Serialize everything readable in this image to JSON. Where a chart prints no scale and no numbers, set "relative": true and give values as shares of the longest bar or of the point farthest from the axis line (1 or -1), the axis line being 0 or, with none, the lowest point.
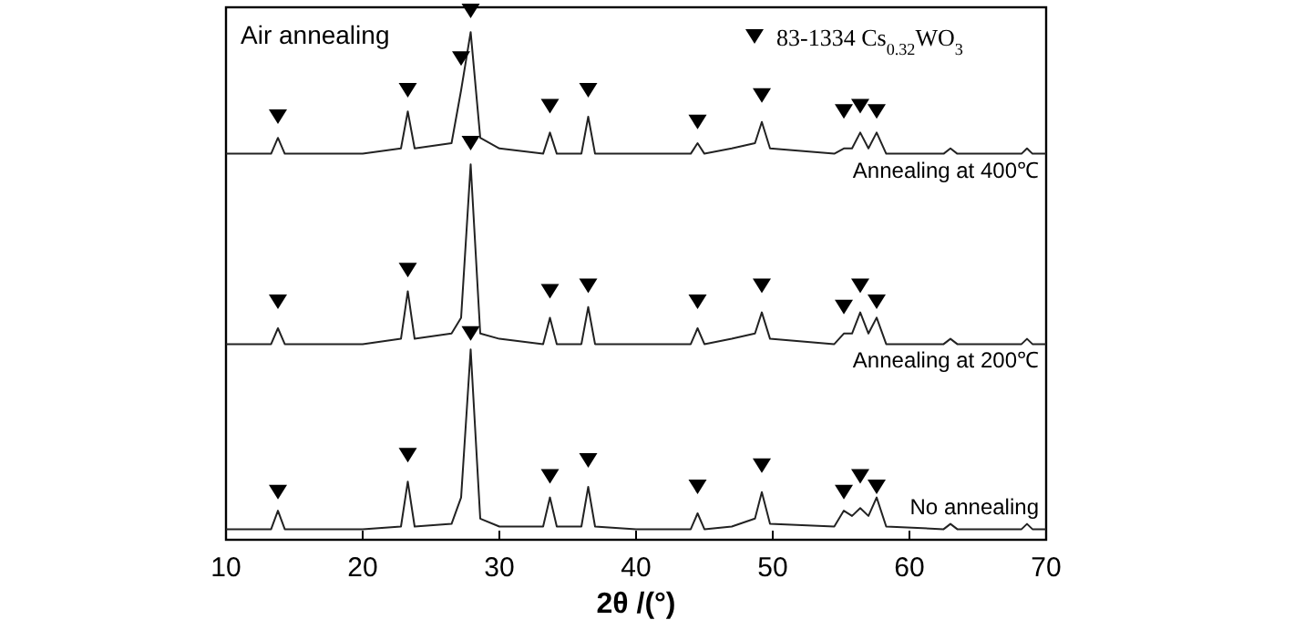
{
  "chart_data": {
    "type": "line",
    "relative": true,
    "xlabel": "2θ /(°)",
    "annotations": [
      "Air annealing"
    ],
    "xlim": [
      10,
      70
    ],
    "xticks": [
      10,
      20,
      30,
      40,
      50,
      60,
      70
    ],
    "grid": false,
    "legend": "top right",
    "marker": "none",
    "line_style": "solid",
    "x": [
      10,
      13.3,
      13.8,
      14.3,
      20,
      22.8,
      23.3,
      23.8,
      26.5,
      27.2,
      27.9,
      28.6,
      30,
      33.2,
      33.7,
      34.2,
      36,
      36.5,
      37,
      40,
      44,
      44.5,
      45,
      47,
      48.7,
      49.2,
      49.8,
      54.5,
      55.2,
      55.8,
      56.4,
      57,
      57.6,
      58.3,
      62.5,
      63,
      63.5,
      68.2,
      68.6,
      69,
      70
    ],
    "series": [
      {
        "name": "Annealing at 400℃",
        "color": "#222222",
        "values": [
          0.73,
          0.73,
          0.76,
          0.73,
          0.73,
          0.74,
          0.81,
          0.74,
          0.75,
          0.85,
          0.96,
          0.76,
          0.74,
          0.73,
          0.77,
          0.73,
          0.73,
          0.8,
          0.73,
          0.73,
          0.73,
          0.75,
          0.73,
          0.74,
          0.75,
          0.79,
          0.74,
          0.73,
          0.74,
          0.74,
          0.77,
          0.74,
          0.77,
          0.73,
          0.73,
          0.74,
          0.73,
          0.73,
          0.74,
          0.73,
          0.73
        ]
      },
      {
        "name": "Annealing at 200℃",
        "color": "#222222",
        "values": [
          0.37,
          0.37,
          0.4,
          0.37,
          0.37,
          0.38,
          0.47,
          0.38,
          0.39,
          0.42,
          0.71,
          0.39,
          0.38,
          0.37,
          0.42,
          0.37,
          0.37,
          0.44,
          0.37,
          0.37,
          0.37,
          0.4,
          0.37,
          0.38,
          0.39,
          0.43,
          0.38,
          0.37,
          0.39,
          0.39,
          0.43,
          0.39,
          0.42,
          0.37,
          0.37,
          0.38,
          0.37,
          0.37,
          0.38,
          0.37,
          0.37
        ]
      },
      {
        "name": "No annealing",
        "color": "#222222",
        "values": [
          0.02,
          0.02,
          0.055,
          0.02,
          0.02,
          0.025,
          0.11,
          0.025,
          0.03,
          0.08,
          0.36,
          0.04,
          0.025,
          0.025,
          0.08,
          0.025,
          0.025,
          0.1,
          0.025,
          0.02,
          0.02,
          0.05,
          0.02,
          0.025,
          0.04,
          0.09,
          0.03,
          0.025,
          0.055,
          0.045,
          0.06,
          0.045,
          0.08,
          0.025,
          0.02,
          0.03,
          0.02,
          0.02,
          0.03,
          0.02,
          0.02
        ]
      },
      {
        "name": "83-1334 Cs$_{0.32}$WO$_{3}$",
        "type": "scatter",
        "marker": "triangle",
        "color": "#000000",
        "x": [
          13.8,
          23.3,
          27.2,
          27.9,
          33.7,
          36.5,
          44.5,
          49.2,
          55.2,
          56.4,
          57.6,
          13.8,
          23.3,
          27.9,
          33.7,
          36.5,
          44.5,
          49.2,
          55.2,
          56.4,
          57.6,
          13.8,
          23.3,
          27.9,
          33.7,
          36.5,
          44.5,
          49.2,
          55.2,
          56.4,
          57.6
        ],
        "values": [
          0.8,
          0.85,
          0.91,
          1,
          0.82,
          0.85,
          0.79,
          0.84,
          0.81,
          0.82,
          0.81,
          0.45,
          0.51,
          0.75,
          0.47,
          0.48,
          0.45,
          0.48,
          0.44,
          0.48,
          0.45,
          0.09,
          0.16,
          0.39,
          0.12,
          0.15,
          0.1,
          0.14,
          0.09,
          0.12,
          0.1
        ]
      }
    ]
  }
}
